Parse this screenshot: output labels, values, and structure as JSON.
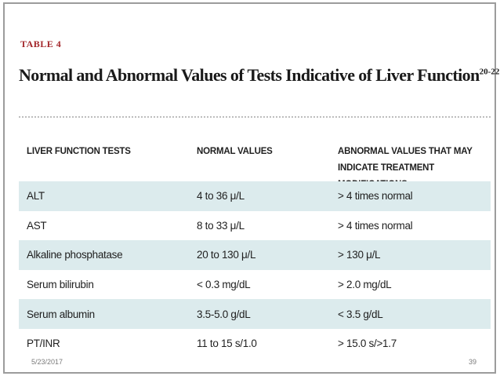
{
  "table": {
    "label": "TABLE 4",
    "title": "Normal and Abnormal Values of Tests Indicative of Liver Function",
    "title_sup": "20-22",
    "headers": {
      "col1": "LIVER FUNCTION TESTS",
      "col2": "NORMAL VALUES",
      "col3_line1": "ABNORMAL VALUES THAT MAY",
      "col3_line2": "INDICATE TREATMENT MODIFICATIONS"
    },
    "rows": [
      {
        "test": "ALT",
        "normal": "4 to 36 μ/L",
        "abnormal": "> 4 times normal"
      },
      {
        "test": "AST",
        "normal": "8 to 33 μ/L",
        "abnormal": "> 4 times normal"
      },
      {
        "test": "Alkaline phosphatase",
        "normal": "20 to 130 μ/L",
        "abnormal": "> 130 μ/L"
      },
      {
        "test": "Serum bilirubin",
        "normal": "< 0.3 mg/dL",
        "abnormal": "> 2.0 mg/dL"
      },
      {
        "test": "Serum albumin",
        "normal": "3.5-5.0 g/dL",
        "abnormal": "< 3.5 g/dL"
      },
      {
        "test": "PT/INR",
        "normal": "11 to 15 s/1.0",
        "abnormal": "> 15.0 s/>1.7"
      }
    ]
  },
  "footer": {
    "date": "5/23/2017",
    "page": "39"
  },
  "colors": {
    "label": "#a3272b",
    "row_shade": "#dcebed",
    "text": "#1f1f1f"
  }
}
